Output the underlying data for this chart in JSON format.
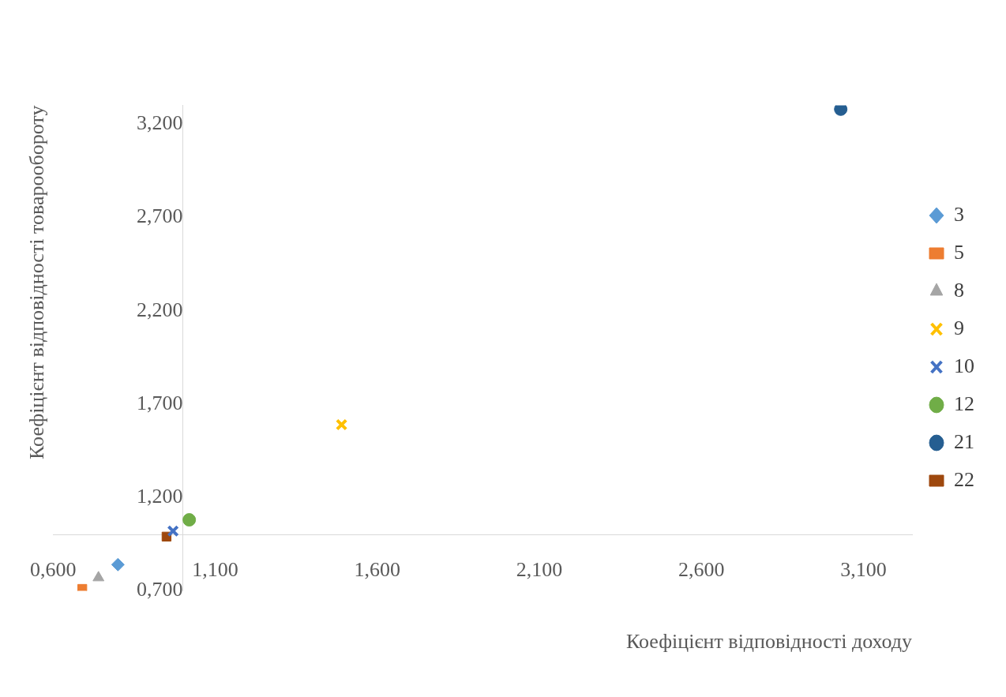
{
  "chart_data": {
    "type": "scatter",
    "xlabel": "Коефіцієнт відповідності доходу",
    "ylabel": "Коефіцієнт відповідності товарообороту",
    "xlim": [
      0.6,
      3.25
    ],
    "ylim": [
      0.7,
      3.3
    ],
    "xticks": [
      {
        "value": 0.6,
        "label": "0,600"
      },
      {
        "value": 1.1,
        "label": "1,100"
      },
      {
        "value": 1.6,
        "label": "1,600"
      },
      {
        "value": 2.1,
        "label": "2,100"
      },
      {
        "value": 2.6,
        "label": "2,600"
      },
      {
        "value": 3.1,
        "label": "3,100"
      }
    ],
    "yticks": [
      {
        "value": 0.7,
        "label": "0,700"
      },
      {
        "value": 1.2,
        "label": "1,200"
      },
      {
        "value": 1.7,
        "label": "1,700"
      },
      {
        "value": 2.2,
        "label": "2,200"
      },
      {
        "value": 2.7,
        "label": "2,700"
      },
      {
        "value": 3.2,
        "label": "3,200"
      }
    ],
    "grid": false,
    "legend": "right",
    "series": [
      {
        "name": "3",
        "color": "#5b9bd5",
        "marker": "diamond",
        "x": [
          0.8
        ],
        "values": [
          0.84
        ]
      },
      {
        "name": "5",
        "color": "#ed7d31",
        "marker": "square",
        "x": [
          0.69
        ],
        "values": [
          0.71
        ]
      },
      {
        "name": "8",
        "color": "#a5a5a5",
        "marker": "triangle",
        "x": [
          0.74
        ],
        "values": [
          0.77
        ]
      },
      {
        "name": "9",
        "color": "#ffc000",
        "marker": "cross",
        "x": [
          1.49
        ],
        "values": [
          1.59
        ]
      },
      {
        "name": "10",
        "color": "#4472c4",
        "marker": "cross",
        "x": [
          0.97
        ],
        "values": [
          1.02
        ]
      },
      {
        "name": "12",
        "color": "#70ad47",
        "marker": "circle",
        "x": [
          1.02
        ],
        "values": [
          1.08
        ]
      },
      {
        "name": "21",
        "color": "#255e91",
        "marker": "circle",
        "x": [
          3.03
        ],
        "values": [
          3.28
        ]
      },
      {
        "name": "22",
        "color": "#9e480e",
        "marker": "square",
        "x": [
          0.95
        ],
        "values": [
          0.99
        ]
      }
    ]
  }
}
